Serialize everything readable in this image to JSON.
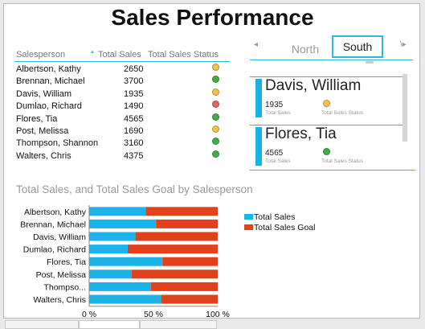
{
  "title": "Sales Performance",
  "table": {
    "headers": [
      "Salesperson",
      "Total Sales",
      "Total Sales Status"
    ],
    "sort_indicator": "▲",
    "rows": [
      {
        "name": "Albertson, Kathy",
        "sales": "2650",
        "status": "yellow"
      },
      {
        "name": "Brennan, Michael",
        "sales": "3700",
        "status": "green"
      },
      {
        "name": "Davis, William",
        "sales": "1935",
        "status": "yellow"
      },
      {
        "name": "Dumlao, Richard",
        "sales": "1490",
        "status": "red"
      },
      {
        "name": "Flores, Tia",
        "sales": "4565",
        "status": "green"
      },
      {
        "name": "Post, Melissa",
        "sales": "1690",
        "status": "yellow"
      },
      {
        "name": "Thompson, Shannon",
        "sales": "3160",
        "status": "green"
      },
      {
        "name": "Walters, Chris",
        "sales": "4375",
        "status": "green"
      }
    ]
  },
  "status_colors": {
    "yellow": "#f2c14e",
    "green": "#3fae49",
    "red": "#e06565"
  },
  "tiles": {
    "nav_left": "◂",
    "nav_right": "\\▸",
    "tabs": [
      {
        "label": "North",
        "selected": false
      },
      {
        "label": "South",
        "selected": true
      }
    ],
    "cards": [
      {
        "name": "Davis, William",
        "value": "1935",
        "label_sales": "Total Sales",
        "label_status": "Total Sales Status",
        "status": "yellow"
      },
      {
        "name": "Flores, Tia",
        "value": "4565",
        "label_sales": "Total Sales",
        "label_status": "Total Sales Status",
        "status": "green"
      }
    ]
  },
  "chart_title": "Total Sales, and Total Sales Goal by Salesperson",
  "chart_data": {
    "type": "bar",
    "orientation": "horizontal",
    "stacking": "percent",
    "categories": [
      "Albertson, Kathy",
      "Brennan, Michael",
      "Davis, William",
      "Dumlao, Richard",
      "Flores, Tia",
      "Post, Melissa",
      "Thompso...",
      "Walters, Chris"
    ],
    "series": [
      {
        "name": "Total Sales",
        "color": "#1bb3e8",
        "values": [
          44,
          52,
          36,
          30,
          57,
          33,
          48,
          56
        ]
      },
      {
        "name": "Total Sales Goal",
        "color": "#e2421b",
        "values": [
          56,
          48,
          64,
          70,
          43,
          67,
          52,
          44
        ]
      }
    ],
    "xticks": [
      "0 %",
      "50 %",
      "100 %"
    ],
    "xlim": [
      0,
      100
    ],
    "legend_position": "right"
  }
}
